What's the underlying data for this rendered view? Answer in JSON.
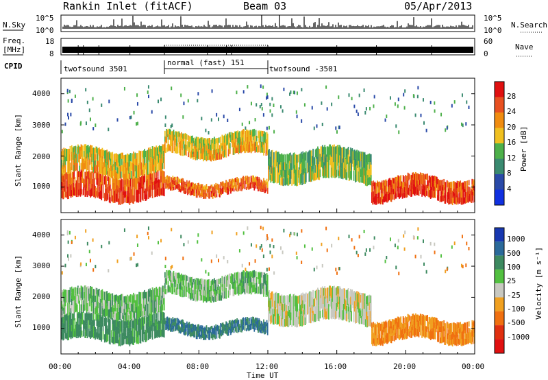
{
  "header": {
    "title": "Rankin Inlet (fitACF)",
    "beam": "Beam 03",
    "date": "05/Apr/2013"
  },
  "nsky_panel": {
    "left_label": "N.Sky",
    "right_label": "N.Search",
    "left_ticks": [
      "10^5",
      "10^0"
    ],
    "right_ticks": [
      "10^5",
      "10^0"
    ]
  },
  "freq_panel": {
    "left_label_line1": "Freq.",
    "left_label_line2": "[MHz]",
    "left_ticks": [
      "18",
      "8"
    ],
    "right_label": "Nave",
    "right_ticks": [
      "60",
      "0"
    ]
  },
  "cpid_panel": {
    "label": "CPID",
    "segments": [
      {
        "text": "twofsound 3501",
        "start_h": 0,
        "end_h": 6
      },
      {
        "text": "normal (fast) 151",
        "start_h": 6,
        "end_h": 12
      },
      {
        "text": "twofsound -3501",
        "start_h": 12,
        "end_h": 24
      }
    ]
  },
  "power_panel": {
    "ylabel": "Slant Range [km]",
    "yticks": [
      "1000",
      "2000",
      "3000",
      "4000"
    ],
    "colorbar_label": "Power [dB]",
    "colorbar_ticks": [
      "4",
      "8",
      "12",
      "16",
      "20",
      "24",
      "28"
    ],
    "colors": [
      "#1030e0",
      "#2a4aa8",
      "#3a8a70",
      "#4db04a",
      "#f0c020",
      "#f08c10",
      "#e85020",
      "#e01010"
    ]
  },
  "velocity_panel": {
    "ylabel": "Slant Range [km]",
    "yticks": [
      "1000",
      "2000",
      "3000",
      "4000"
    ],
    "colorbar_label": "Velocity [m s⁻¹]",
    "colorbar_ticks": [
      "1000",
      "500",
      "100",
      "25",
      "-25",
      "-100",
      "-500",
      "-1000"
    ],
    "colors": [
      "#1838b0",
      "#2b6a9a",
      "#3d8a60",
      "#52c040",
      "#c8c8c0",
      "#f0a020",
      "#f07010",
      "#e03010",
      "#e01010"
    ]
  },
  "x_axis": {
    "xlabel": "Time UT",
    "ticks": [
      "00:00",
      "04:00",
      "08:00",
      "12:00",
      "16:00",
      "20:00",
      "00:00"
    ]
  },
  "chart_data": {
    "type": "heatmap",
    "x_range_hours": [
      0,
      24
    ],
    "y_range_km": [
      180,
      4500
    ],
    "power_ranges": [
      4,
      8,
      12,
      16,
      20,
      24,
      28
    ],
    "velocity_levels": [
      1000,
      500,
      100,
      25,
      -25,
      -100,
      -500,
      -1000
    ],
    "backscatter_bands": [
      {
        "t0": 0,
        "t1": 6,
        "r0": 600,
        "r1": 1400,
        "power": 28,
        "vel": 100
      },
      {
        "t0": 0,
        "t1": 6,
        "r0": 1400,
        "r1": 2200,
        "power": 20,
        "vel": 25
      },
      {
        "t0": 6,
        "t1": 12,
        "r0": 800,
        "r1": 1200,
        "power": 26,
        "vel": 300
      },
      {
        "t0": 6,
        "t1": 12,
        "r0": 2000,
        "r1": 2700,
        "power": 20,
        "vel": 25
      },
      {
        "t0": 12,
        "t1": 18,
        "r0": 1200,
        "r1": 2200,
        "power": 16,
        "vel": -25
      },
      {
        "t0": 18,
        "t1": 24,
        "r0": 600,
        "r1": 1300,
        "power": 28,
        "vel": -300
      }
    ]
  }
}
